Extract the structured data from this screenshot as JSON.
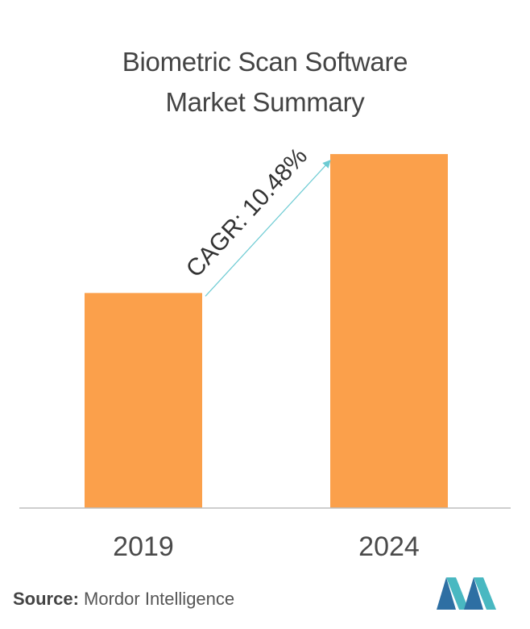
{
  "title_line1": "Biometric Scan Software",
  "title_line2": "Market Summary",
  "chart_data": {
    "type": "bar",
    "categories": [
      "2019",
      "2024"
    ],
    "values": [
      1.0,
      1.646
    ],
    "ylim": [
      0,
      1.65
    ],
    "annotation": "CAGR: 10.48%",
    "bar_color": "#fba04b",
    "arrow_color": "#6dcbd3",
    "axis_color": "#bdbdbd"
  },
  "source": {
    "label": "Source:",
    "text": " Mordor Intelligence"
  },
  "logo": {
    "name": "mordor-intelligence-logo",
    "colors": [
      "#2e6fa3",
      "#49b8c1"
    ]
  }
}
